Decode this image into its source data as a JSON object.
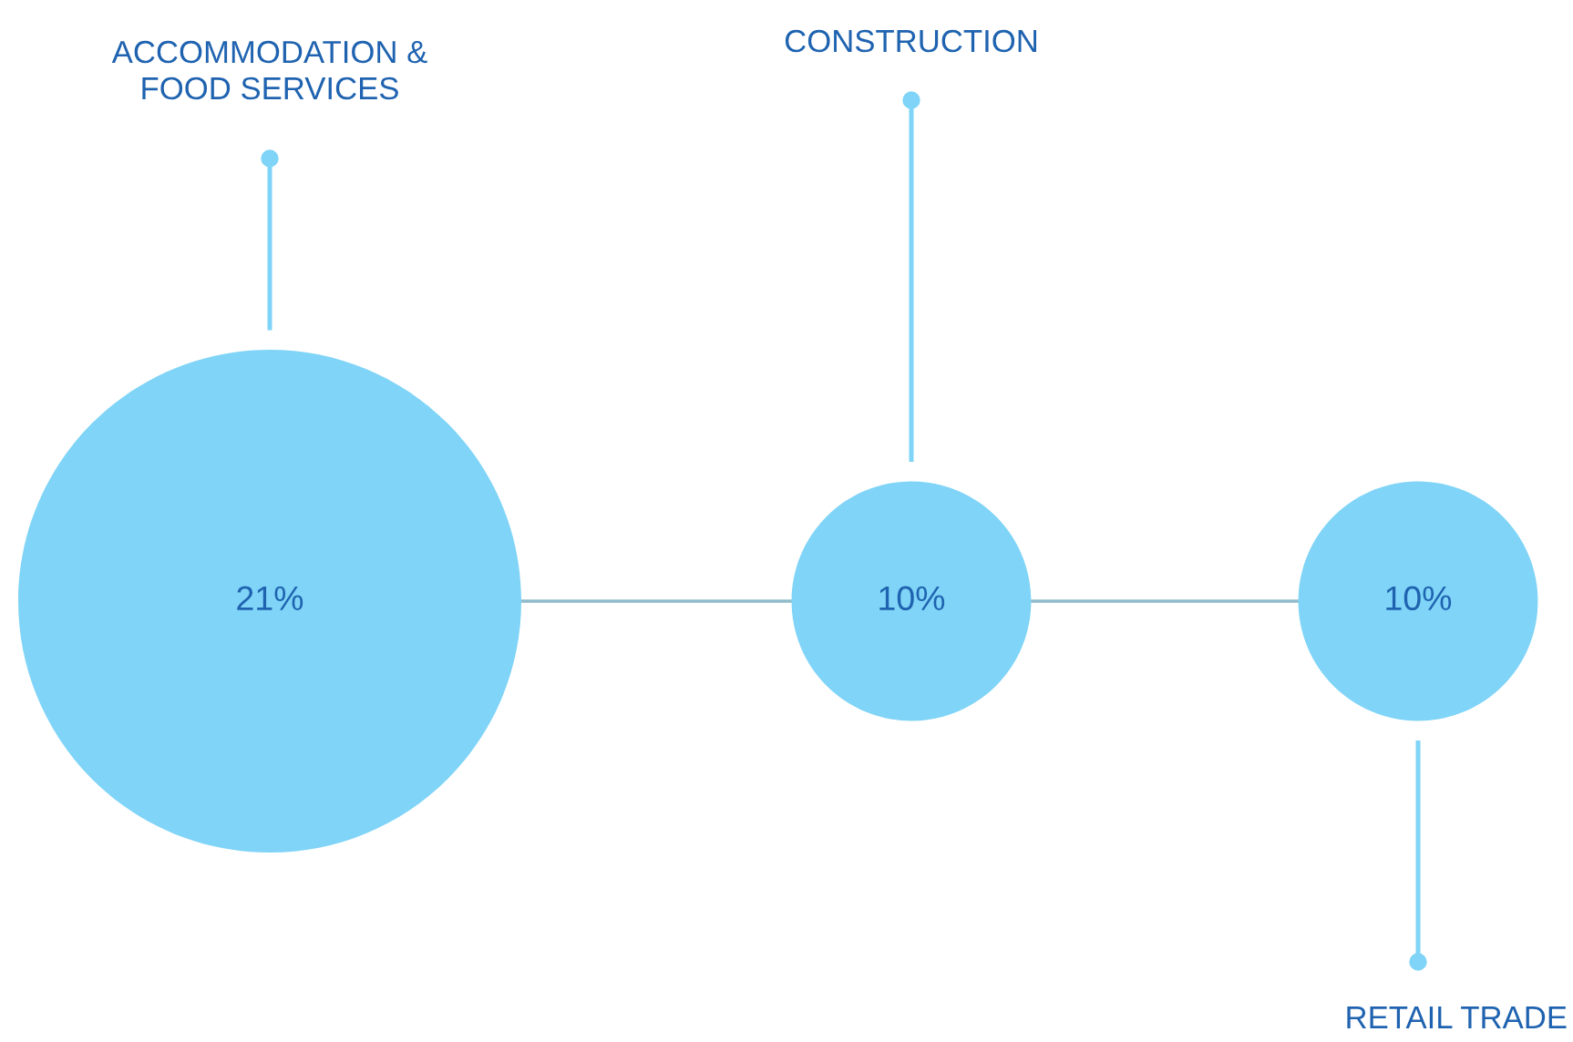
{
  "chart_data": {
    "type": "other",
    "categories": [
      "ACCOMMODATION &\nFOOD SERVICES",
      "CONSTRUCTION",
      "RETAIL TRADE"
    ],
    "values": [
      21,
      10,
      10
    ],
    "value_labels": [
      "21%",
      "10%",
      "10%"
    ],
    "color": "#7fd4f7"
  }
}
